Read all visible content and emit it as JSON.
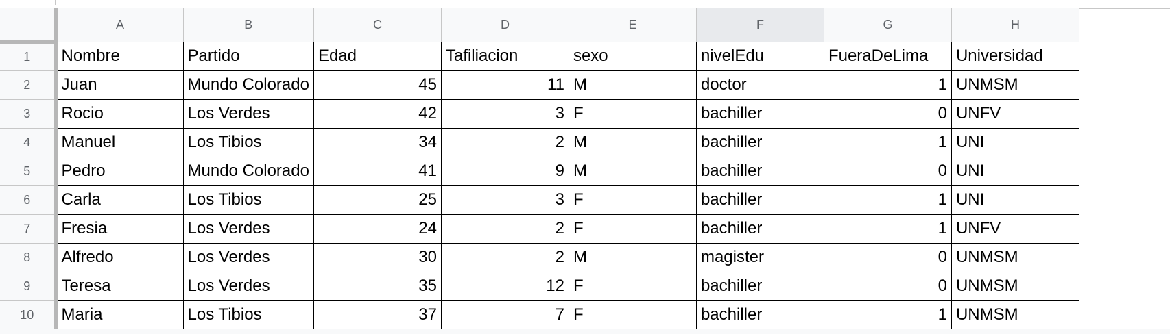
{
  "sheet": {
    "columns": [
      "A",
      "B",
      "C",
      "D",
      "E",
      "F",
      "G",
      "H"
    ],
    "rows": [
      {
        "num": "1",
        "cells": [
          "Nombre",
          "Partido",
          "Edad",
          "Tafiliacion",
          "sexo",
          "nivelEdu",
          "FueraDeLima",
          "Universidad"
        ]
      },
      {
        "num": "2",
        "cells": [
          "Juan",
          "Mundo Colorado",
          "45",
          "11",
          "M",
          "doctor",
          "1",
          "UNMSM"
        ]
      },
      {
        "num": "3",
        "cells": [
          "Rocio",
          "Los Verdes",
          "42",
          "3",
          "F",
          "bachiller",
          "0",
          "UNFV"
        ]
      },
      {
        "num": "4",
        "cells": [
          "Manuel",
          "Los Tibios",
          "34",
          "2",
          "M",
          "bachiller",
          "1",
          "UNI"
        ]
      },
      {
        "num": "5",
        "cells": [
          "Pedro",
          "Mundo Colorado",
          "41",
          "9",
          "M",
          "bachiller",
          "0",
          "UNI"
        ]
      },
      {
        "num": "6",
        "cells": [
          "Carla",
          "Los Tibios",
          "25",
          "3",
          "F",
          "bachiller",
          "1",
          "UNI"
        ]
      },
      {
        "num": "7",
        "cells": [
          "Fresia",
          "Los Verdes",
          "24",
          "2",
          "F",
          "bachiller",
          "1",
          "UNFV"
        ]
      },
      {
        "num": "8",
        "cells": [
          "Alfredo",
          "Los Verdes",
          "30",
          "2",
          "M",
          "magister",
          "0",
          "UNMSM"
        ]
      },
      {
        "num": "9",
        "cells": [
          "Teresa",
          "Los Verdes",
          "35",
          "12",
          "F",
          "bachiller",
          "0",
          "UNMSM"
        ]
      },
      {
        "num": "10",
        "cells": [
          "Maria",
          "Los Tibios",
          "37",
          "7",
          "F",
          "bachiller",
          "1",
          "UNMSM"
        ]
      }
    ],
    "numeric_columns": [
      2,
      3,
      6
    ],
    "selected_column": "F"
  },
  "colors": {
    "header_bg": "#f8f9fa",
    "selected_header_bg": "#e8eaed",
    "header_text": "#5f6368",
    "grid_line": "#000000",
    "freeze_bar": "#b7b7b7"
  }
}
